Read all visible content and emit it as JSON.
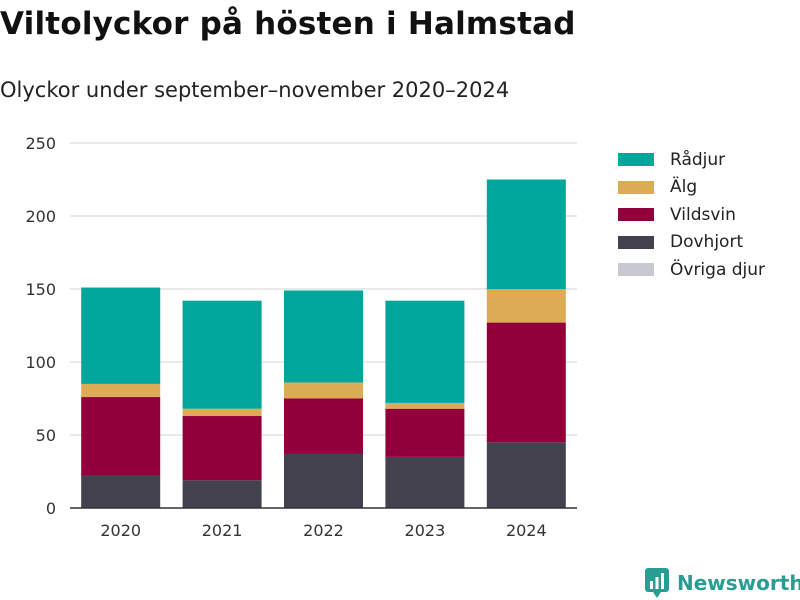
{
  "title": "Viltolyckor på hösten i Halmstad",
  "subtitle": "Olyckor under september–november 2020–2024",
  "brand": "Newsworthy",
  "icons": {
    "brand": "newsworthy-logo-icon"
  },
  "chart_data": {
    "type": "bar",
    "stacked": true,
    "categories": [
      "2020",
      "2021",
      "2022",
      "2023",
      "2024"
    ],
    "ylim": [
      0,
      250
    ],
    "yticks": [
      0,
      50,
      100,
      150,
      200,
      250
    ],
    "grid": true,
    "legend_position": "right",
    "series": [
      {
        "name": "Dovhjort",
        "color": "#43414e",
        "values": [
          22,
          19,
          37,
          35,
          45
        ]
      },
      {
        "name": "Vildsvin",
        "color": "#92003b",
        "values": [
          54,
          44,
          38,
          33,
          82
        ]
      },
      {
        "name": "Älg",
        "color": "#dcab56",
        "values": [
          9,
          5,
          11,
          4,
          23
        ]
      },
      {
        "name": "Rådjur",
        "color": "#00a59b",
        "values": [
          66,
          74,
          63,
          70,
          75
        ]
      },
      {
        "name": "Övriga djur",
        "color": "#c8c8d1",
        "values": [
          0,
          0,
          0,
          0,
          0
        ]
      }
    ],
    "legend_order": [
      "Rådjur",
      "Älg",
      "Vildsvin",
      "Dovhjort",
      "Övriga djur"
    ]
  }
}
